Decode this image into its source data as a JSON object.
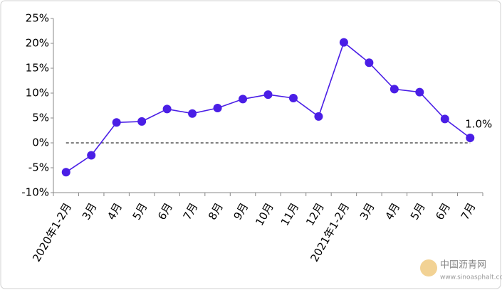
{
  "chart_data": {
    "type": "line",
    "categories": [
      "2020年1-2月",
      "3月",
      "4月",
      "5月",
      "6月",
      "7月",
      "8月",
      "9月",
      "10月",
      "11月",
      "12月",
      "2021年1-2月",
      "3月",
      "4月",
      "5月",
      "6月",
      "7月"
    ],
    "series": [
      {
        "color": "#4a1ee6",
        "values": [
          -5.9,
          -2.5,
          4.1,
          4.3,
          6.8,
          5.9,
          7.0,
          8.8,
          9.7,
          9.0,
          5.3,
          20.2,
          16.1,
          10.8,
          10.2,
          4.8,
          1.0
        ],
        "value_labels": [
          null,
          null,
          null,
          null,
          null,
          null,
          null,
          null,
          null,
          null,
          null,
          null,
          null,
          null,
          null,
          null,
          "1.0%"
        ]
      }
    ],
    "ylim": [
      -10,
      25
    ],
    "yticks": [
      {
        "value": -10,
        "label": "-10%"
      },
      {
        "value": -5,
        "label": "-5%"
      },
      {
        "value": 0,
        "label": "0%"
      },
      {
        "value": 5,
        "label": "5%"
      },
      {
        "value": 10,
        "label": "10%"
      },
      {
        "value": 15,
        "label": "15%"
      },
      {
        "value": 20,
        "label": "20%"
      },
      {
        "value": 25,
        "label": "25%"
      }
    ],
    "grid": false
  },
  "watermark": {
    "title": "中国沥青网",
    "url": "www.sinoasphalt.com"
  }
}
